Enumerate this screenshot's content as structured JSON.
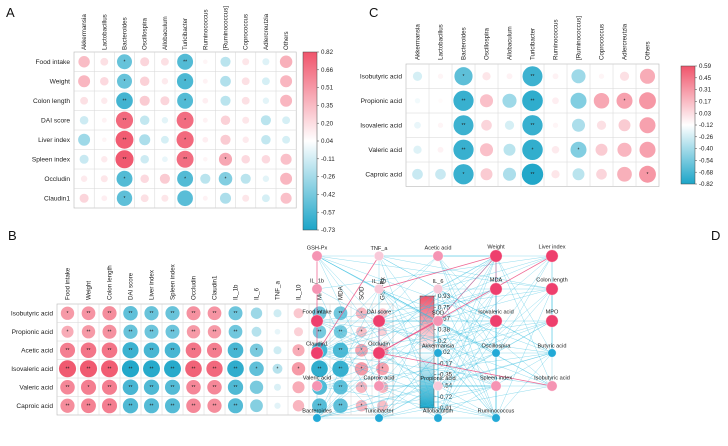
{
  "chart_data": [
    {
      "panel": "A",
      "type": "heatmap",
      "columns": [
        "Akkermansia",
        "Lactobacillus",
        "Bacteroides",
        "Oscillospira",
        "Allobaculum",
        "Turicibacter",
        "Ruminococcus",
        "[Ruminococcus]",
        "Coprococcus",
        "Adlercreutzia",
        "Others"
      ],
      "rows": [
        "Food intake",
        "Weight",
        "Colon length",
        "DAI score",
        "Liver index",
        "Spleen index",
        "Occludin",
        "Claudin1"
      ],
      "values": [
        [
          0.32,
          0.15,
          -0.55,
          0.2,
          0.15,
          -0.62,
          0.05,
          -0.25,
          0.12,
          -0.12,
          0.38
        ],
        [
          0.35,
          0.18,
          -0.55,
          0.22,
          0.1,
          -0.65,
          0.06,
          -0.28,
          0.15,
          -0.15,
          0.35
        ],
        [
          0.15,
          0.1,
          -0.68,
          0.25,
          0.2,
          -0.62,
          0.08,
          -0.25,
          0.15,
          -0.1,
          0.35
        ],
        [
          -0.18,
          0.06,
          0.72,
          -0.22,
          -0.1,
          0.7,
          0.06,
          0.22,
          0.12,
          -0.25,
          -0.15
        ],
        [
          -0.35,
          0.05,
          0.78,
          -0.3,
          -0.15,
          0.72,
          0.08,
          0.25,
          0.1,
          -0.22,
          -0.15
        ],
        [
          -0.2,
          0.1,
          0.8,
          -0.18,
          -0.08,
          0.7,
          0.05,
          0.42,
          0.18,
          0.18,
          0.3
        ],
        [
          0.1,
          0.12,
          -0.62,
          0.18,
          0.25,
          -0.62,
          -0.25,
          -0.45,
          -0.25,
          -0.1,
          0.35
        ],
        [
          0.2,
          0.08,
          -0.58,
          0.15,
          0.12,
          -0.6,
          0.06,
          -0.3,
          0.12,
          -0.15,
          0.3
        ]
      ],
      "stars": [
        [
          "",
          "",
          "*",
          "",
          "",
          "**",
          "",
          "",
          "",
          "",
          ""
        ],
        [
          "",
          "",
          "*",
          "",
          "",
          "*",
          "",
          "",
          "",
          "",
          ""
        ],
        [
          "",
          "",
          "**",
          "",
          "",
          "*",
          "",
          "",
          "",
          "",
          ""
        ],
        [
          "",
          "",
          "**",
          "",
          "",
          "*",
          "",
          "",
          "",
          "",
          ""
        ],
        [
          "",
          "",
          "**",
          "",
          "",
          "*",
          "",
          "",
          "",
          "",
          ""
        ],
        [
          "",
          "",
          "**",
          "",
          "",
          "**",
          "",
          "*",
          "",
          "",
          ""
        ],
        [
          "",
          "",
          "*",
          "",
          "",
          "*",
          "",
          "*",
          "",
          "",
          ""
        ],
        [
          "",
          "",
          "*",
          "",
          "",
          "",
          "",
          "",
          "",
          "",
          ""
        ]
      ],
      "colorbar_ticks": [
        "0.82",
        "0.66",
        "0.51",
        "0.35",
        "0.20",
        "0.04",
        "-0.11",
        "-0.26",
        "-0.42",
        "-0.57",
        "-0.73"
      ],
      "range": [
        -0.73,
        0.82
      ]
    },
    {
      "panel": "B",
      "type": "heatmap",
      "columns": [
        "Food intake",
        "Weight",
        "Colon length",
        "DAI score",
        "Liver index",
        "Spleen index",
        "Occludin",
        "Claudin1",
        "IL_1b",
        "IL_6",
        "TNF_a",
        "IL_10",
        "MPO",
        "MDA",
        "SOD",
        "GSH-Px"
      ],
      "rows": [
        "Isobutyric acid",
        "Propionic acid",
        "Acetic acid",
        "Isovaleric acid",
        "Valeric acid",
        "Caproic acid"
      ],
      "values": [
        [
          0.55,
          0.58,
          0.62,
          -0.65,
          -0.62,
          -0.62,
          0.6,
          0.58,
          -0.6,
          -0.4,
          -0.2,
          0.3,
          -0.58,
          -0.58,
          0.4,
          0.3
        ],
        [
          0.45,
          0.55,
          0.6,
          -0.62,
          -0.6,
          -0.6,
          0.55,
          0.55,
          -0.58,
          -0.3,
          -0.1,
          0.25,
          -0.55,
          -0.55,
          0.35,
          0.25
        ],
        [
          0.7,
          0.75,
          0.75,
          -0.8,
          -0.75,
          -0.75,
          0.75,
          0.7,
          -0.75,
          -0.55,
          -0.2,
          0.45,
          -0.75,
          -0.72,
          0.5,
          0.45
        ],
        [
          0.9,
          0.9,
          0.88,
          -0.9,
          -0.88,
          -0.88,
          0.85,
          0.82,
          -0.85,
          -0.65,
          -0.3,
          0.55,
          -0.85,
          -0.82,
          0.55,
          0.5
        ],
        [
          0.65,
          0.7,
          0.7,
          -0.75,
          -0.72,
          -0.7,
          0.65,
          0.65,
          -0.72,
          -0.55,
          -0.15,
          0.45,
          -0.7,
          -0.65,
          0.4,
          0.4
        ],
        [
          0.62,
          0.68,
          0.7,
          -0.72,
          -0.7,
          -0.7,
          0.65,
          0.62,
          -0.7,
          -0.5,
          -0.12,
          0.4,
          -0.68,
          -0.65,
          0.4,
          0.35
        ]
      ],
      "stars": [
        [
          "*",
          "**",
          "**",
          "**",
          "**",
          "**",
          "**",
          "**",
          "**",
          "",
          "",
          "",
          "**",
          "**",
          "*",
          ""
        ],
        [
          "*",
          "**",
          "**",
          "**",
          "**",
          "**",
          "**",
          "**",
          "**",
          "",
          "",
          "",
          "**",
          "**",
          "*",
          ""
        ],
        [
          "**",
          "**",
          "**",
          "**",
          "**",
          "**",
          "**",
          "**",
          "**",
          "*",
          "",
          "*",
          "**",
          "**",
          "*",
          "*"
        ],
        [
          "**",
          "**",
          "**",
          "**",
          "**",
          "**",
          "**",
          "**",
          "**",
          "*",
          "*",
          "*",
          "**",
          "**",
          "*",
          "*"
        ],
        [
          "**",
          "*",
          "**",
          "**",
          "**",
          "**",
          "**",
          "**",
          "**",
          "",
          "",
          "",
          "**",
          "**",
          "*",
          ""
        ],
        [
          "**",
          "**",
          "**",
          "**",
          "**",
          "**",
          "**",
          "**",
          "**",
          "",
          "",
          "",
          "**",
          "**",
          "*",
          ""
        ]
      ],
      "colorbar_ticks": [
        "0.93",
        "0.75",
        "0.57",
        "0.38",
        "0.2",
        "0.02",
        "-0.17",
        "-0.35",
        "-0.54",
        "-0.72",
        "-0.91"
      ],
      "range": [
        -0.91,
        0.93
      ]
    },
    {
      "panel": "C",
      "type": "heatmap",
      "columns": [
        "Akkermansia",
        "Lactobacillus",
        "Bacteroides",
        "Oscillospira",
        "Allobaculum",
        "Turicibacter",
        "Ruminococcus",
        "[Ruminococcus]",
        "Coprococcus",
        "Adlercreutzia",
        "Others"
      ],
      "rows": [
        "Isobutyric acid",
        "Propionic acid",
        "Isovaleric acid",
        "Valeric acid",
        "Caproic acid"
      ],
      "values": [
        [
          -0.15,
          0.05,
          -0.58,
          0.12,
          0.06,
          -0.7,
          0.06,
          -0.35,
          0.05,
          0.15,
          0.4
        ],
        [
          -0.05,
          0.02,
          -0.72,
          0.3,
          -0.35,
          -0.75,
          0.08,
          -0.45,
          0.42,
          0.45,
          0.5
        ],
        [
          -0.08,
          0.05,
          -0.7,
          0.2,
          -0.15,
          -0.72,
          0.05,
          -0.3,
          0.15,
          0.25,
          0.45
        ],
        [
          -0.12,
          0.06,
          -0.72,
          0.3,
          -0.25,
          -0.74,
          0.1,
          -0.45,
          0.25,
          0.35,
          0.45
        ],
        [
          -0.2,
          -0.2,
          -0.72,
          0.25,
          -0.3,
          -0.8,
          0.12,
          -0.25,
          0.2,
          0.38,
          0.5
        ]
      ],
      "stars": [
        [
          "",
          "",
          "*",
          "",
          "",
          "**",
          "",
          "",
          "",
          "",
          ""
        ],
        [
          "",
          "",
          "**",
          "",
          "",
          "**",
          "",
          "",
          "",
          "*",
          ""
        ],
        [
          "",
          "",
          "**",
          "",
          "",
          "**",
          "",
          "",
          "",
          "",
          ""
        ],
        [
          "",
          "",
          "**",
          "",
          "",
          "*",
          "",
          "*",
          "",
          "",
          ""
        ],
        [
          "",
          "",
          "*",
          "",
          "",
          "**",
          "",
          "",
          "",
          "",
          "*"
        ]
      ],
      "colorbar_ticks": [
        "0.59",
        "0.45",
        "0.31",
        "0.17",
        "0.03",
        "-0.12",
        "-0.26",
        "-0.40",
        "-0.54",
        "-0.68",
        "-0.82"
      ],
      "range": [
        -0.82,
        0.59
      ]
    },
    {
      "panel": "D",
      "type": "network",
      "nodes": [
        {
          "id": "GSH-Px",
          "col": 0,
          "row": 0,
          "tone": "light"
        },
        {
          "id": "TNF_a",
          "col": 1,
          "row": 0,
          "tone": "pale"
        },
        {
          "id": "Acetic acid",
          "col": 2,
          "row": 0,
          "tone": "light"
        },
        {
          "id": "Weight",
          "col": 3,
          "row": 0,
          "tone": "strong"
        },
        {
          "id": "Liver index",
          "col": 4,
          "row": 0,
          "tone": "strong"
        },
        {
          "id": "IL_1b",
          "col": 0,
          "row": 1,
          "tone": "light"
        },
        {
          "id": "IL_10",
          "col": 1,
          "row": 1,
          "tone": "pale"
        },
        {
          "id": "IL_6",
          "col": 2,
          "row": 1,
          "tone": "pale"
        },
        {
          "id": "MDA",
          "col": 3,
          "row": 1,
          "tone": "strong"
        },
        {
          "id": "Colon length",
          "col": 4,
          "row": 1,
          "tone": "strong"
        },
        {
          "id": "Food intake",
          "col": 0,
          "row": 2,
          "tone": "strong"
        },
        {
          "id": "DAI score",
          "col": 1,
          "row": 2,
          "tone": "strong"
        },
        {
          "id": "SOD",
          "col": 2,
          "row": 2,
          "tone": "light"
        },
        {
          "id": "Isovaleric acid",
          "col": 3,
          "row": 2,
          "tone": "strong"
        },
        {
          "id": "MPO",
          "col": 4,
          "row": 2,
          "tone": "strong"
        },
        {
          "id": "Claudin1",
          "col": 0,
          "row": 3,
          "tone": "strong"
        },
        {
          "id": "Occludin",
          "col": 1,
          "row": 3,
          "tone": "strong"
        },
        {
          "id": "Akkermansia",
          "col": 2,
          "row": 3,
          "tone": "blue"
        },
        {
          "id": "Oscillospira",
          "col": 3,
          "row": 3,
          "tone": "blue"
        },
        {
          "id": "Butyric acid",
          "col": 4,
          "row": 3,
          "tone": "blue"
        },
        {
          "id": "Valeric acid",
          "col": 0,
          "row": 4,
          "tone": "light"
        },
        {
          "id": "Caproic acid",
          "col": 1,
          "row": 4,
          "tone": "light"
        },
        {
          "id": "Propionic acid",
          "col": 2,
          "row": 4,
          "tone": "pale"
        },
        {
          "id": "Spleen index",
          "col": 3,
          "row": 4,
          "tone": "light"
        },
        {
          "id": "Isobutyric acid",
          "col": 4,
          "row": 4,
          "tone": "light"
        },
        {
          "id": "Bacteroides",
          "col": 0,
          "row": 5,
          "tone": "blue"
        },
        {
          "id": "Turicibacter",
          "col": 1,
          "row": 5,
          "tone": "blue"
        },
        {
          "id": "Allobaculum",
          "col": 2,
          "row": 5,
          "tone": "blue"
        },
        {
          "id": "Ruminococcus",
          "col": 3,
          "row": 5,
          "tone": "blue"
        }
      ]
    }
  ],
  "colors": {
    "high": "#f0546b",
    "mid": "#ffffff",
    "low": "#1ca5c8",
    "node_strong": "#ee3f6d",
    "node_light": "#f594b3",
    "node_pale": "#f8c9d9",
    "node_blue": "#22a9d6",
    "edge_blue": "#36bde0",
    "edge_pink": "#ec4f82"
  }
}
